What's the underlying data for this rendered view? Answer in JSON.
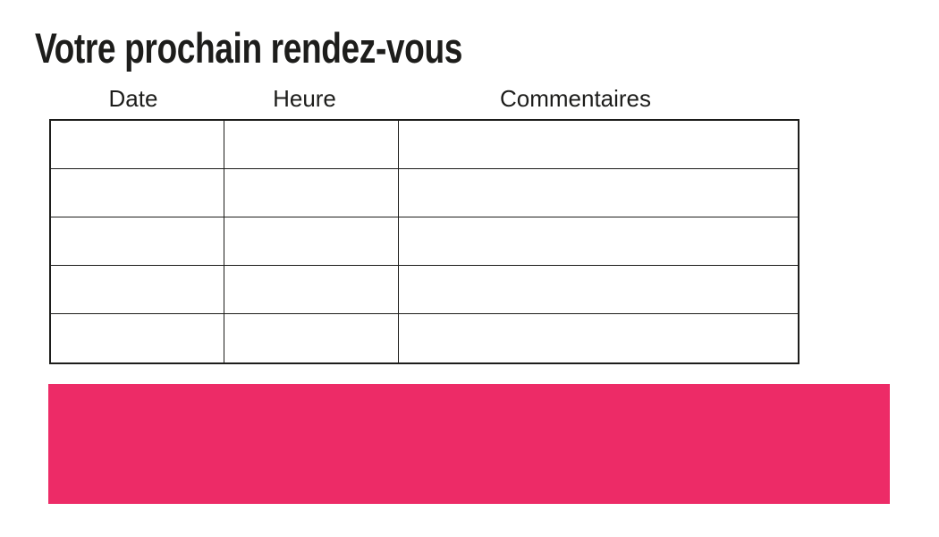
{
  "page": {
    "title": "Votre prochain rendez-vous",
    "accent_color": "#ED2B67"
  },
  "table": {
    "columns": [
      {
        "label": "Date"
      },
      {
        "label": "Heure"
      },
      {
        "label": "Commentaires"
      }
    ],
    "rows": [
      [
        "",
        "",
        ""
      ],
      [
        "",
        "",
        ""
      ],
      [
        "",
        "",
        ""
      ],
      [
        "",
        "",
        ""
      ],
      [
        "",
        "",
        ""
      ]
    ]
  }
}
